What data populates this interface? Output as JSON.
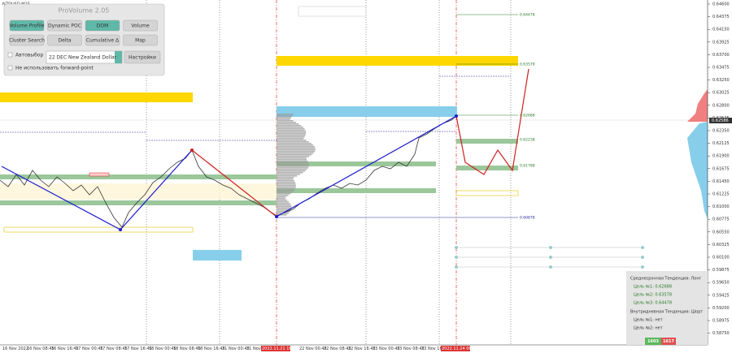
{
  "symbol": "NZDUSD,M15",
  "panel": {
    "title": "ProVolume 2.05",
    "buttons": [
      "Volume Profile",
      "Dynamic POC",
      "DOM",
      "Volume",
      "Cluster Search",
      "Delta",
      "Cumulative Δ",
      "Map"
    ],
    "auto_select": "Автовыбор",
    "contract": "22 DEC New Zealand Dollar",
    "settings": "Настройки",
    "forward_point": "Не использовать forward-point"
  },
  "price_axis": {
    "labels": [
      "0.64600",
      "0.64375",
      "0.64150",
      "0.63925",
      "0.63700",
      "0.63475",
      "0.63250",
      "0.63025",
      "0.62800",
      "0.62575",
      "0.62350",
      "0.62125",
      "0.61900",
      "0.61675",
      "0.61450",
      "0.61225",
      "0.61000",
      "0.60775",
      "0.60550",
      "0.60325",
      "0.60100",
      "0.59875",
      "0.59650",
      "0.59425",
      "0.59200",
      "0.58975",
      "0.58750"
    ],
    "current": "0.62586"
  },
  "time_axis": {
    "labels": [
      "16 Nov 2022",
      "16 Nov 08:45",
      "16 Nov 16:45",
      "17 Nov 00:45",
      "17 Nov 08:45",
      "17 Nov 16:45",
      "18 Nov 00:45",
      "18 Nov 08:45",
      "18 Nov 16:45",
      "21 Nov 00:45",
      "21 Nov 08:45",
      "2022.11.21 16:45",
      "22 Nov 00:45",
      "22 Nov 08:45",
      "22 Nov 16:45",
      "23 Nov 00:45",
      "23 Nov 08:45",
      "23 Nov 16:45",
      "2022.11.24 06:45"
    ]
  },
  "levels": [
    "0.64478",
    "0.63578",
    "0.62688",
    "0.62238",
    "0.61788",
    "0.60878"
  ],
  "trend_panel": {
    "mid_term": "Среднесрочная Тенденция: Лонг",
    "mid_targets": [
      "Цель №1: 0.62688",
      "Цель №2: 0.63578",
      "Цель №3: 0.64478"
    ],
    "intraday": "Внутридневная Тенденция: Шорт",
    "intraday_targets": [
      "Цель №1: нет",
      "Цель №2: нет"
    ]
  },
  "counters": [
    "1603",
    "1617"
  ]
}
